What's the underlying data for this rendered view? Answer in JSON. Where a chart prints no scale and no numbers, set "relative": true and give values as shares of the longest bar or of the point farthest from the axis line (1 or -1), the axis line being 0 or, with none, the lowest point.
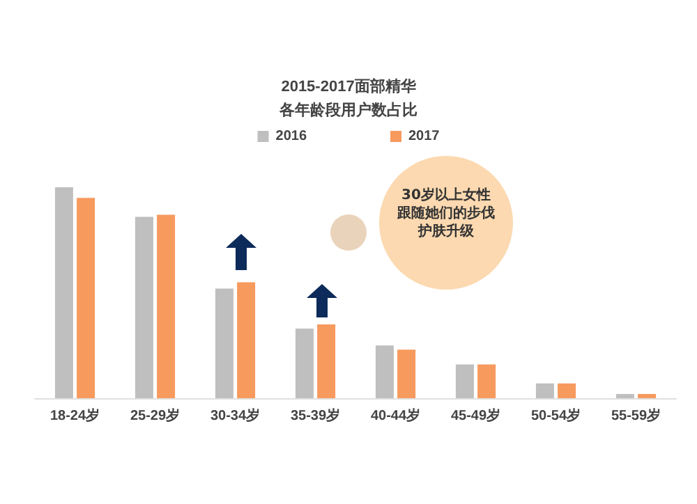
{
  "chart_data": {
    "type": "bar",
    "title": "2015-2017面部精华",
    "subtitle": "各年龄段用户数占比",
    "relative": true,
    "categories": [
      "18-24岁",
      "25-29岁",
      "30-34岁",
      "35-39岁",
      "40-44岁",
      "45-49岁",
      "50-54岁",
      "55-59岁"
    ],
    "series": [
      {
        "name": "2016",
        "color": "#bfbfbf",
        "values": [
          1,
          0.86,
          0.52,
          0.33,
          0.25,
          0.16,
          0.07,
          0.02
        ]
      },
      {
        "name": "2017",
        "color": "#f79a5e",
        "values": [
          0.95,
          0.87,
          0.55,
          0.35,
          0.23,
          0.16,
          0.07,
          0.02
        ]
      }
    ],
    "annotations": [
      "30岁以上女性",
      "跟随她们的步伐",
      "护肤升级"
    ],
    "legend": "top"
  }
}
